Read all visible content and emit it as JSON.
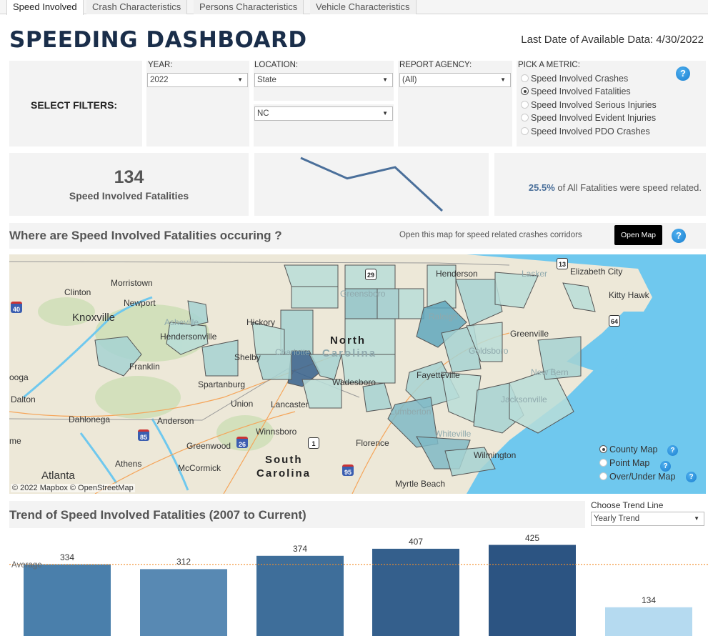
{
  "tabs": [
    {
      "label": "Speed Involved",
      "active": true
    },
    {
      "label": "Crash Characteristics",
      "active": false
    },
    {
      "label": "Persons Characteristics",
      "active": false
    },
    {
      "label": "Vehicle Characteristics",
      "active": false
    }
  ],
  "header": {
    "title": "SPEEDING DASHBOARD",
    "last_date_label": "Last Date of Available Data:",
    "last_date_value": "4/30/2022"
  },
  "filters": {
    "label": "SELECT FILTERS:",
    "year": {
      "label": "YEAR:",
      "value": "2022"
    },
    "location": {
      "label": "LOCATION:",
      "value": "State",
      "sub_value": "NC"
    },
    "agency": {
      "label": "REPORT AGENCY:",
      "value": "(All)"
    },
    "metric": {
      "label": "PICK A METRIC:",
      "options": [
        {
          "label": "Speed Involved Crashes",
          "selected": false
        },
        {
          "label": "Speed Involved Fatalities",
          "selected": true
        },
        {
          "label": "Speed Involved Serious Injuries",
          "selected": false
        },
        {
          "label": "Speed Involved Evident Injuries",
          "selected": false
        },
        {
          "label": "Speed Involved PDO Crashes",
          "selected": false
        }
      ]
    },
    "help_icon": "?"
  },
  "kpi": {
    "value": "134",
    "label": "Speed Involved Fatalities",
    "sparkline": [
      425,
      312,
      374,
      134
    ],
    "percent": "25.5%",
    "percent_text": "of All Fatalities were speed related."
  },
  "map_section": {
    "title": "Where are Speed Involved Fatalities occuring ?",
    "note": "Open this map for speed related crashes corridors",
    "open_button": "Open Map",
    "attribution": "© 2022 Mapbox  © OpenStreetMap",
    "labels": [
      {
        "text": "Morristown",
        "faint": false
      },
      {
        "text": "Clinton",
        "faint": false
      },
      {
        "text": "Newport",
        "faint": false
      },
      {
        "text": "Knoxville",
        "faint": false
      },
      {
        "text": "Asheville",
        "faint": true
      },
      {
        "text": "Hendersonville",
        "faint": false
      },
      {
        "text": "Franklin",
        "faint": false
      },
      {
        "text": "Hickory",
        "faint": false
      },
      {
        "text": "Shelby",
        "faint": false
      },
      {
        "text": "Charlotte",
        "faint": true
      },
      {
        "text": "Greensboro",
        "faint": true
      },
      {
        "text": "Henderson",
        "faint": false
      },
      {
        "text": "Lasker",
        "faint": true
      },
      {
        "text": "Elizabeth City",
        "faint": false
      },
      {
        "text": "Kitty Hawk",
        "faint": false
      },
      {
        "text": "Raleigh",
        "faint": true
      },
      {
        "text": "Greenville",
        "faint": false
      },
      {
        "text": "Goldsboro",
        "faint": true
      },
      {
        "text": "New Bern",
        "faint": true
      },
      {
        "text": "Fayetteville",
        "faint": false
      },
      {
        "text": "Wadesboro",
        "faint": false
      },
      {
        "text": "Lumberton",
        "faint": true
      },
      {
        "text": "Jacksonville",
        "faint": true
      },
      {
        "text": "Whiteville",
        "faint": true
      },
      {
        "text": "Wilmington",
        "faint": false
      },
      {
        "text": "Spartanburg",
        "faint": false
      },
      {
        "text": "Union",
        "faint": false
      },
      {
        "text": "Lancaster",
        "faint": false
      },
      {
        "text": "Dalton",
        "faint": false
      },
      {
        "text": "Dahlonega",
        "faint": false
      },
      {
        "text": "Anderson",
        "faint": false
      },
      {
        "text": "Winnsboro",
        "faint": false
      },
      {
        "text": "Florence",
        "faint": false
      },
      {
        "text": "Greenwood",
        "faint": false
      },
      {
        "text": "Athens",
        "faint": false
      },
      {
        "text": "McCormick",
        "faint": false
      },
      {
        "text": "Atlanta",
        "faint": false
      },
      {
        "text": "Myrtle Beach",
        "faint": false
      },
      {
        "text": "ooga",
        "faint": false
      },
      {
        "text": "me",
        "faint": false
      }
    ],
    "state_labels": [
      "North",
      "Carolina",
      "South",
      "Carolina"
    ],
    "shields": [
      "40",
      "85",
      "26",
      "1",
      "95",
      "29",
      "13",
      "64"
    ],
    "map_types": [
      {
        "label": "County Map",
        "selected": true
      },
      {
        "label": "Point Map",
        "selected": false
      },
      {
        "label": "Over/Under Map",
        "selected": false
      }
    ]
  },
  "trend": {
    "title": "Trend of Speed Involved Fatalities (2007 to Current)",
    "choose_label": "Choose Trend Line",
    "choose_value": "Yearly Trend",
    "average_label": "Average"
  },
  "chart_data": {
    "type": "bar",
    "title": "Trend of Speed Involved Fatalities (2007 to Current)",
    "values": [
      334,
      312,
      374,
      407,
      425,
      134
    ],
    "colors": [
      "#4a7fab",
      "#5889b3",
      "#3e6e9a",
      "#345f8c",
      "#2c5482",
      "#b5daf0"
    ],
    "average": 334,
    "average_color": "#f28e2b",
    "ylim": [
      0,
      500
    ]
  }
}
